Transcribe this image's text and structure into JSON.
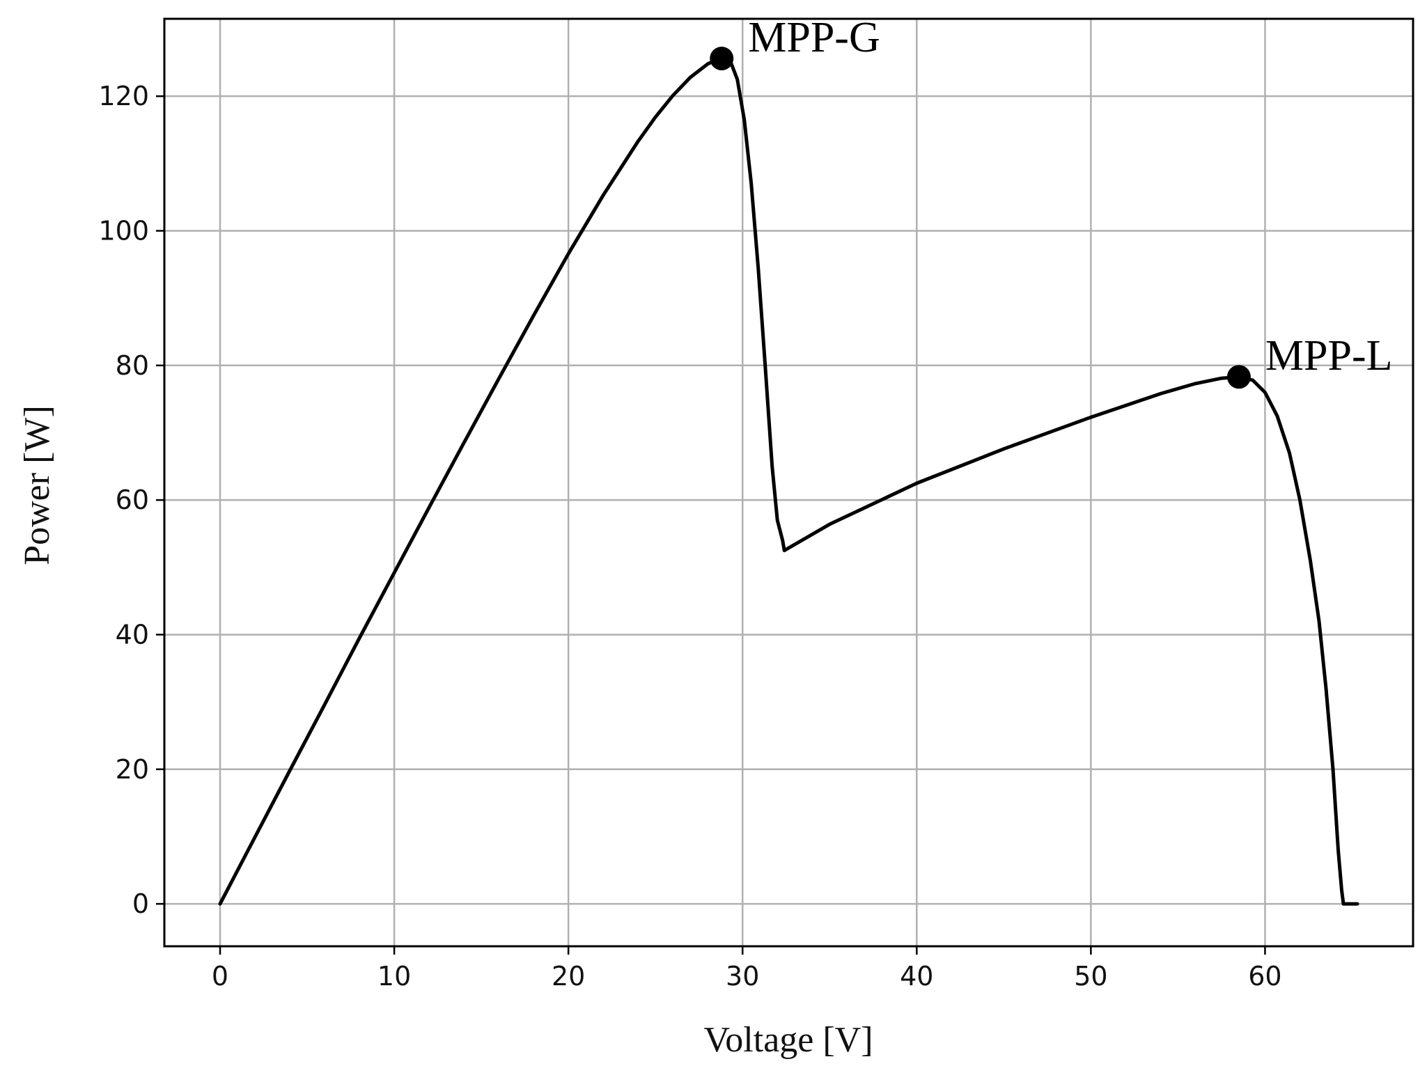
{
  "chart_data": {
    "type": "line",
    "xlabel": "Voltage [V]",
    "ylabel": "Power [W]",
    "xlim": [
      -3.2,
      68.5
    ],
    "ylim": [
      -6.3,
      131.5
    ],
    "x_ticks": [
      0,
      10,
      20,
      30,
      40,
      50,
      60
    ],
    "y_ticks": [
      0,
      20,
      40,
      60,
      80,
      100,
      120
    ],
    "grid": true,
    "legend": "none",
    "colors": {
      "curve": "#000000",
      "grid": "#b0b0b0",
      "marker": "#000000"
    },
    "series": [
      {
        "x": [
          0,
          2,
          4,
          6,
          8,
          10,
          12,
          14,
          16,
          18,
          20,
          22,
          24,
          25,
          26,
          27,
          28,
          28.5,
          28.8,
          29.3,
          29.7,
          30.1,
          30.5,
          30.9,
          31.3,
          31.7,
          32.0,
          32.3,
          32.4,
          35,
          40,
          45,
          50,
          54,
          56,
          57.5,
          58.5,
          59.3,
          60.0,
          60.7,
          61.4,
          62.0,
          62.6,
          63.1,
          63.5,
          63.9,
          64.2,
          64.4,
          64.5,
          65.0,
          65.3
        ],
        "y": [
          0,
          9.9,
          19.8,
          29.6,
          39.5,
          49.2,
          58.9,
          68.5,
          78.0,
          87.4,
          96.6,
          105.3,
          113.3,
          116.9,
          120.1,
          122.8,
          124.8,
          125.4,
          125.6,
          125.2,
          122.5,
          116.5,
          107.0,
          94.5,
          80.0,
          65.0,
          57.0,
          54.0,
          52.5,
          56.4,
          62.5,
          67.6,
          72.3,
          75.8,
          77.3,
          78.1,
          78.3,
          77.8,
          76.0,
          72.5,
          67.0,
          60.0,
          51.0,
          42.0,
          32.0,
          20.0,
          8.0,
          2.0,
          0,
          0,
          0
        ]
      }
    ],
    "points": [
      {
        "label": "MPP-G",
        "x": 28.8,
        "y": 125.6
      },
      {
        "label": "MPP-L",
        "x": 58.5,
        "y": 78.3
      }
    ]
  }
}
